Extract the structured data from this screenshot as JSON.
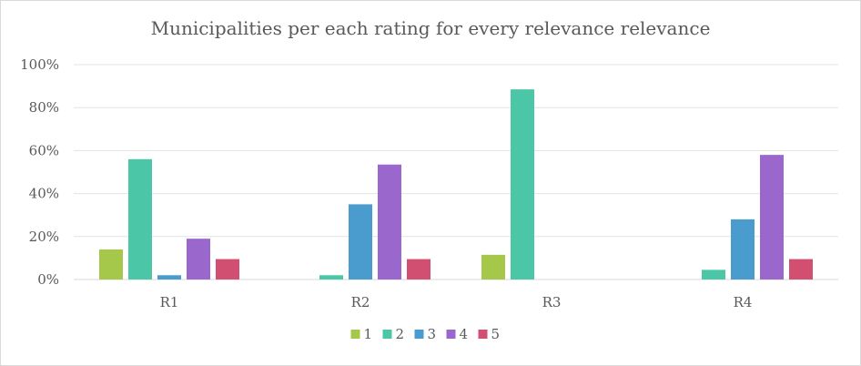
{
  "chart_data": {
    "type": "bar",
    "title": "Municipalities per each rating for every relevance relevance",
    "categories": [
      "R1",
      "R2",
      "R3",
      "R4"
    ],
    "series": [
      {
        "name": "1",
        "color": "#a5c84a",
        "values": [
          14,
          0,
          11.5,
          0
        ]
      },
      {
        "name": "2",
        "color": "#4bc6a6",
        "values": [
          56,
          2,
          88.5,
          4.5
        ]
      },
      {
        "name": "3",
        "color": "#4a9cce",
        "values": [
          2,
          35,
          0,
          28
        ]
      },
      {
        "name": "4",
        "color": "#9a68cc",
        "values": [
          19,
          53.5,
          0,
          58
        ]
      },
      {
        "name": "5",
        "color": "#d14f71",
        "values": [
          9.5,
          9.5,
          0,
          9.5
        ]
      }
    ],
    "yticks": [
      "0%",
      "20%",
      "40%",
      "60%",
      "80%",
      "100%"
    ],
    "ylim": [
      0,
      100
    ],
    "grid": true,
    "legend_position": "bottom",
    "xlabel": "",
    "ylabel": ""
  }
}
